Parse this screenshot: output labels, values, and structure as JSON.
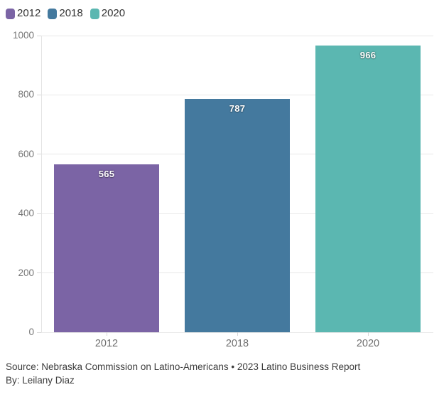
{
  "chart_data": {
    "type": "bar",
    "title": "",
    "categories": [
      "2012",
      "2018",
      "2020"
    ],
    "values": [
      565,
      787,
      966
    ],
    "value_labels": [
      "565",
      "787",
      "966"
    ],
    "bar_colors": [
      "#7b64a5",
      "#44799e",
      "#5bb7b1"
    ],
    "xlabel": "",
    "ylabel": "",
    "ylim": [
      0,
      1000
    ],
    "yticks": [
      0,
      200,
      400,
      600,
      800,
      1000
    ],
    "grid": true,
    "legend_position": "top-left",
    "legend": [
      {
        "label": "2012",
        "color": "#7b64a5"
      },
      {
        "label": "2018",
        "color": "#44799e"
      },
      {
        "label": "2020",
        "color": "#5bb7b1"
      }
    ]
  },
  "footer": {
    "source_line": "Source: Nebraska Commission on Latino-Americans • 2023 Latino Business Report",
    "byline": "By: Leilany Diaz"
  }
}
